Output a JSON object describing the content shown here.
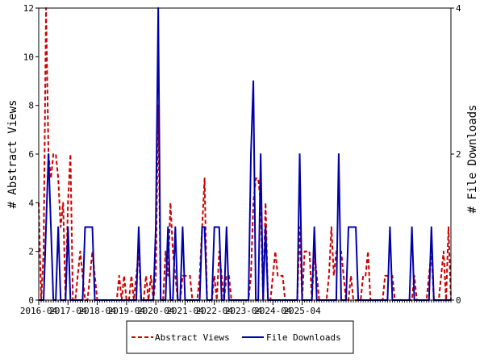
{
  "chart_data": {
    "type": "line",
    "x_ticks": [
      "2016-04",
      "2017-04",
      "2018-04",
      "2019-04",
      "2020-04",
      "2021-04",
      "2022-04",
      "2023-04",
      "2024-04",
      "2025-04"
    ],
    "y_left": {
      "label": "# Abstract Views",
      "range": [
        0,
        12
      ],
      "ticks": [
        0,
        2,
        4,
        6,
        8,
        10,
        12
      ]
    },
    "y_right": {
      "label": "# File Downloads",
      "range": [
        0,
        4
      ],
      "ticks": [
        0,
        2,
        4
      ]
    },
    "x_start": "2016-04",
    "legend_position": "bottom-center",
    "series": [
      {
        "name": "Abstract Views",
        "axis": "left",
        "color": "#cc0000",
        "dash": true,
        "values": [
          4,
          0,
          2,
          12,
          6,
          5,
          6,
          6,
          5,
          3,
          4,
          0,
          4,
          6,
          0,
          0,
          1,
          2,
          1,
          0,
          0,
          1,
          2,
          1,
          0,
          0,
          0,
          0,
          0,
          0,
          0,
          0,
          0,
          1,
          0,
          1,
          0,
          0,
          1,
          0,
          1,
          2,
          0,
          0,
          1,
          0,
          1,
          0,
          1,
          8,
          0,
          0,
          2,
          1,
          4,
          2,
          1,
          0,
          0,
          1,
          1,
          1,
          1,
          0,
          0,
          0,
          1,
          3,
          5,
          0,
          0,
          0,
          1,
          0,
          2,
          1,
          0,
          1,
          1,
          0,
          0,
          0,
          0,
          0,
          0,
          0,
          0,
          1,
          4,
          5,
          5,
          4,
          0,
          4,
          0,
          0,
          1,
          2,
          1,
          1,
          1,
          0,
          0,
          0,
          0,
          0,
          0,
          3,
          0,
          2,
          2,
          2,
          0,
          2,
          1,
          0,
          0,
          0,
          0,
          1,
          3,
          1,
          2,
          2,
          2,
          1,
          0,
          0,
          1,
          0,
          0,
          0,
          0,
          1,
          1,
          2,
          0,
          0,
          0,
          0,
          0,
          0,
          1,
          1,
          1,
          1,
          0,
          0,
          0,
          0,
          0,
          0,
          0,
          0,
          1,
          0,
          0,
          0,
          0,
          0,
          1,
          2,
          0,
          0,
          0,
          1,
          2,
          0,
          3,
          0
        ]
      },
      {
        "name": "File Downloads",
        "axis": "right",
        "color": "#0000aa",
        "dash": false,
        "values": [
          0,
          0,
          0,
          1,
          2,
          1,
          0,
          0,
          1,
          0,
          0,
          0,
          1,
          0,
          0,
          0,
          0,
          0,
          0,
          1,
          1,
          1,
          1,
          0,
          0,
          0,
          0,
          0,
          0,
          0,
          0,
          0,
          0,
          0,
          0,
          0,
          0,
          0,
          0,
          0,
          0,
          1,
          0,
          0,
          0,
          0,
          0,
          0,
          1,
          4,
          0,
          0,
          0,
          1,
          0,
          0,
          1,
          0,
          0,
          1,
          0,
          0,
          0,
          0,
          0,
          0,
          0,
          1,
          1,
          0,
          0,
          0,
          1,
          1,
          1,
          0,
          0,
          1,
          0,
          0,
          0,
          0,
          0,
          0,
          0,
          0,
          0,
          2,
          3,
          0,
          0,
          2,
          0,
          1,
          0,
          0,
          0,
          0,
          0,
          0,
          0,
          0,
          0,
          0,
          0,
          0,
          0,
          2,
          0,
          0,
          0,
          0,
          0,
          1,
          0,
          0,
          0,
          0,
          0,
          0,
          0,
          0,
          0,
          2,
          0,
          0,
          0,
          1,
          1,
          1,
          1,
          0,
          0,
          0,
          0,
          0,
          0,
          0,
          0,
          0,
          0,
          0,
          0,
          0,
          1,
          0,
          0,
          0,
          0,
          0,
          0,
          0,
          0,
          1,
          0,
          0,
          0,
          0,
          0,
          0,
          0,
          1,
          0,
          0,
          0,
          0,
          0,
          0,
          0,
          0
        ]
      }
    ]
  }
}
